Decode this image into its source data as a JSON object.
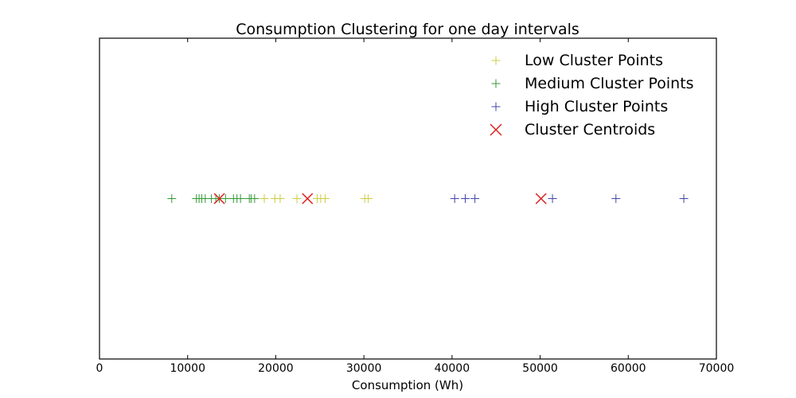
{
  "chart_data": {
    "type": "scatter",
    "title": "Consumption Clustering for one day intervals",
    "xlabel": "Consumption (Wh)",
    "ylabel": "",
    "xlim": [
      0,
      70000
    ],
    "ylim": [
      -1,
      1
    ],
    "xticks": [
      0,
      10000,
      20000,
      30000,
      40000,
      50000,
      60000,
      70000
    ],
    "xtick_labels": [
      "0",
      "10000",
      "20000",
      "30000",
      "40000",
      "50000",
      "60000",
      "70000"
    ],
    "grid": false,
    "legend_position": "top-right",
    "series": [
      {
        "name": "Low Cluster Points",
        "marker": "plus",
        "color": "#cccc44",
        "x": [
          18700,
          19900,
          20500,
          22400,
          24700,
          25100,
          25600,
          30100,
          30500
        ],
        "y": [
          0,
          0,
          0,
          0,
          0,
          0,
          0,
          0,
          0
        ]
      },
      {
        "name": "Medium Cluster Points",
        "marker": "plus",
        "color": "#339933",
        "x": [
          8200,
          11000,
          11300,
          11600,
          12000,
          12700,
          13200,
          13600,
          14300,
          15200,
          15600,
          16000,
          17000,
          17200,
          17600
        ],
        "y": [
          0,
          0,
          0,
          0,
          0,
          0,
          0,
          0,
          0,
          0,
          0,
          0,
          0,
          0,
          0
        ]
      },
      {
        "name": "High Cluster Points",
        "marker": "plus",
        "color": "#4444aa",
        "x": [
          40300,
          41500,
          42600,
          51400,
          58600,
          66300
        ],
        "y": [
          0,
          0,
          0,
          0,
          0,
          0
        ]
      },
      {
        "name": "Cluster Centroids",
        "marker": "x",
        "color": "#dd2222",
        "x": [
          13600,
          23600,
          50100
        ],
        "y": [
          0,
          0,
          0
        ]
      }
    ]
  }
}
